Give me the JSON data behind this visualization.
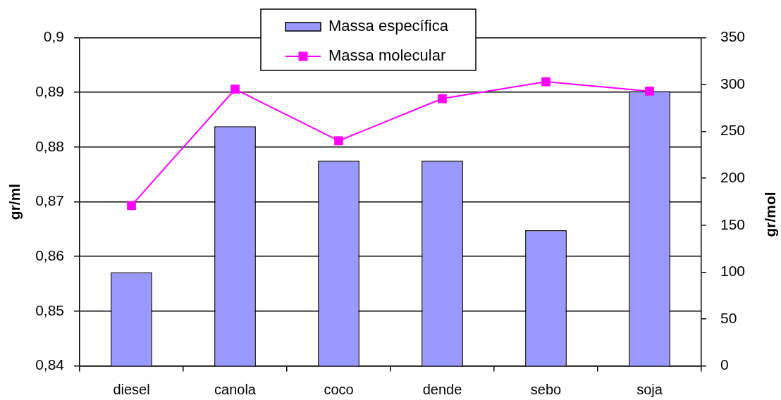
{
  "chart_data": {
    "type": "bar",
    "categories": [
      "diesel",
      "canola",
      "coco",
      "dende",
      "sebo",
      "soja"
    ],
    "series": [
      {
        "name": "Massa específica",
        "color": "#9999ff",
        "values": [
          0.8571,
          0.8838,
          0.8775,
          0.8775,
          0.8648,
          0.8902
        ]
      },
      {
        "name": "Massa molecular",
        "type": "line",
        "color": "#ff00ff",
        "axis": "y2",
        "values": [
          171,
          295,
          240,
          285,
          303,
          293
        ]
      }
    ],
    "ylabel": "gr/ml",
    "y2label": "gr/mol",
    "ylim": [
      0.84,
      0.9
    ],
    "yticks": [
      {
        "value": 0.84,
        "label": "0,84"
      },
      {
        "value": 0.85,
        "label": "0,85"
      },
      {
        "value": 0.86,
        "label": "0,86"
      },
      {
        "value": 0.87,
        "label": "0,87"
      },
      {
        "value": 0.88,
        "label": "0,88"
      },
      {
        "value": 0.89,
        "label": "0,89"
      },
      {
        "value": 0.9,
        "label": "0,9"
      }
    ],
    "y2lim": [
      0,
      350
    ],
    "y2ticks": [
      0,
      50,
      100,
      150,
      200,
      250,
      300,
      350
    ],
    "grid": "y",
    "legend": "top",
    "marker": "square"
  }
}
